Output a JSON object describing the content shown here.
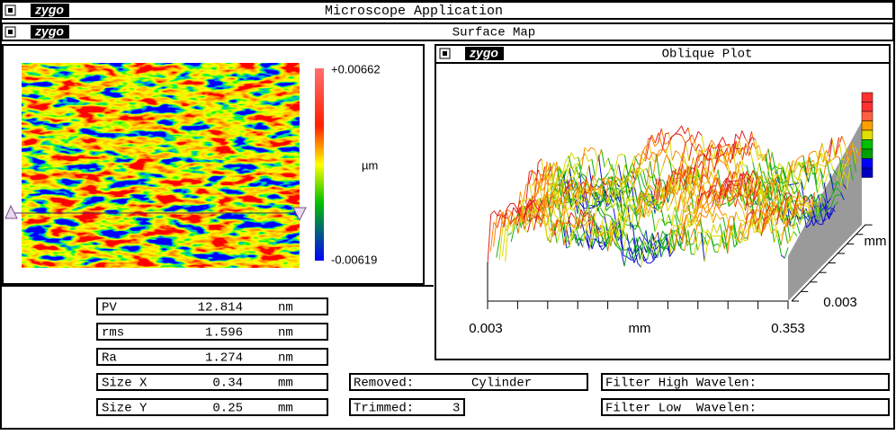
{
  "window_title": "Microscope Application",
  "logo": "zygo",
  "panel_title": "Surface Map",
  "surface_map": {
    "scale_max": "+0.00662",
    "unit": "µm",
    "scale_min": "-0.00619"
  },
  "oblique_plot": {
    "title": "Oblique Plot",
    "x_start": "0.003",
    "x_unit": "mm",
    "x_end": "0.353",
    "y_start": "0.003",
    "y_unit": "mm"
  },
  "stats": [
    {
      "label": "PV",
      "value": "12.814",
      "unit": "nm"
    },
    {
      "label": "rms",
      "value": "1.596",
      "unit": "nm"
    },
    {
      "label": "Ra",
      "value": "1.274",
      "unit": "nm"
    },
    {
      "label": "Size X",
      "value": "0.34",
      "unit": "mm"
    },
    {
      "label": "Size Y",
      "value": "0.25",
      "unit": "mm"
    }
  ],
  "processing": {
    "removed_label": "Removed:",
    "removed_value": "Cylinder",
    "trimmed_label": "Trimmed:",
    "trimmed_value": "3"
  },
  "filters": {
    "high": "Filter High Wavelen:",
    "low": "Filter Low  Wavelen:"
  }
}
